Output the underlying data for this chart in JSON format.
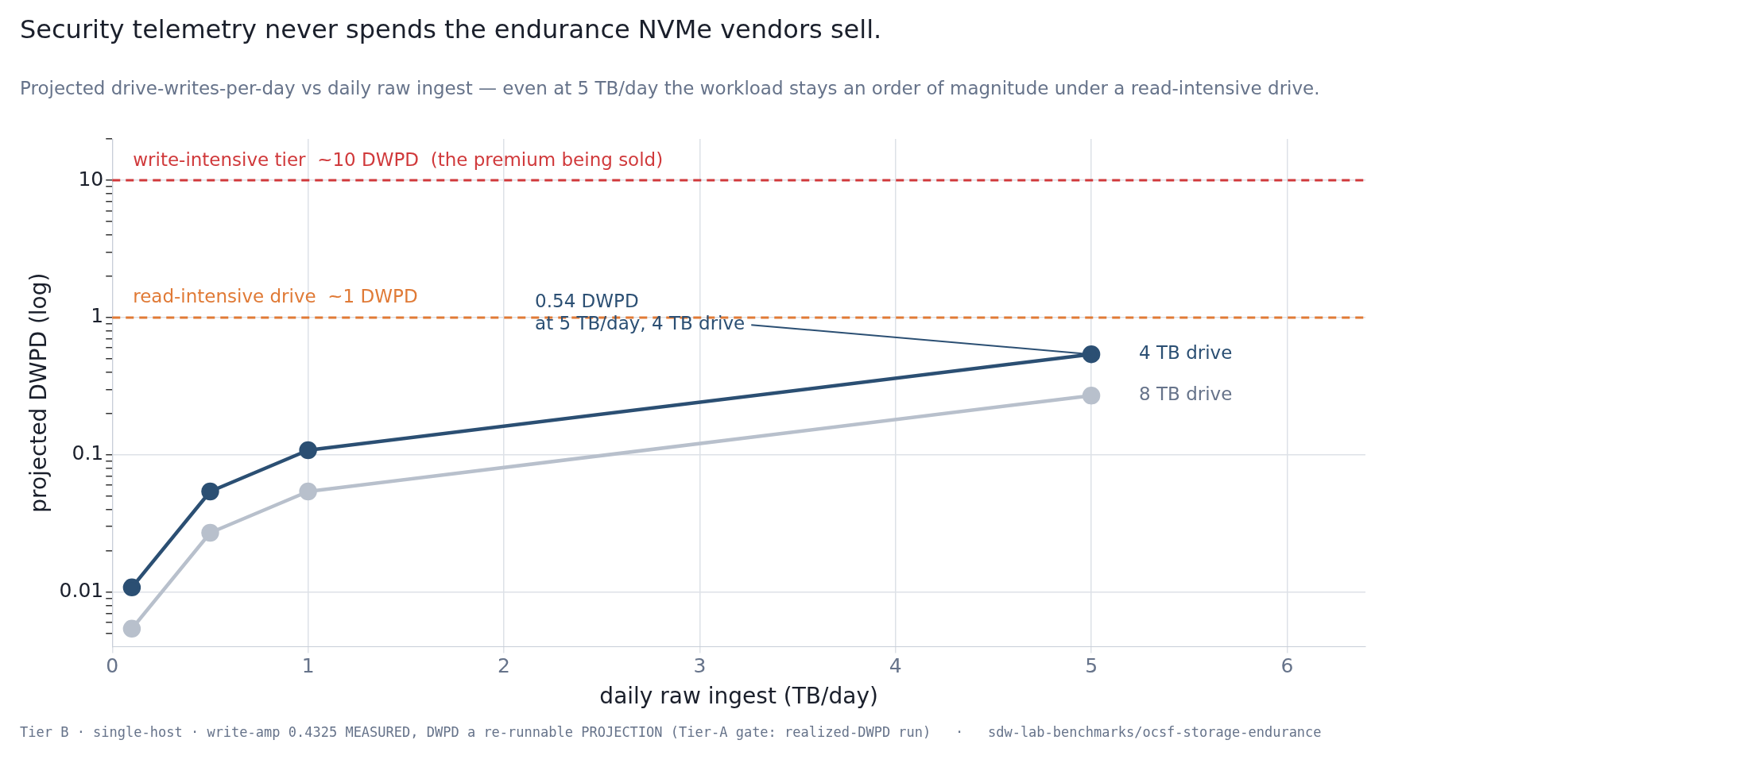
{
  "chart_data": {
    "type": "line",
    "title": "Security telemetry never spends the endurance NVMe vendors sell.",
    "subtitle": "Projected drive-writes-per-day vs daily raw ingest — even at 5 TB/day the workload stays an order of magnitude under a read-intensive drive.",
    "xlabel": "daily raw ingest (TB/day)",
    "ylabel": "projected DWPD (log)",
    "x": [
      0.1,
      0.5,
      1,
      5
    ],
    "series": [
      {
        "name": "4 TB drive",
        "color": "#2b4f73",
        "values": [
          0.0108,
          0.054,
          0.108,
          0.54
        ]
      },
      {
        "name": "8 TB drive",
        "color": "#b8c0cc",
        "values": [
          0.0054,
          0.027,
          0.054,
          0.27
        ]
      }
    ],
    "log": "y",
    "xlim": [
      0,
      6.4
    ],
    "ylim": [
      0.004,
      20
    ],
    "xticks": [
      0,
      1,
      2,
      3,
      4,
      5,
      6
    ],
    "yticks": [
      {
        "value": 0.005,
        "label": null
      },
      {
        "value": 0.006,
        "label": null
      },
      {
        "value": 0.007,
        "label": null
      },
      {
        "value": 0.008,
        "label": null
      },
      {
        "value": 0.009,
        "label": null
      },
      {
        "value": 0.01,
        "label": "0.01"
      },
      {
        "value": 0.02,
        "label": null
      },
      {
        "value": 0.03,
        "label": null
      },
      {
        "value": 0.04,
        "label": null
      },
      {
        "value": 0.05,
        "label": null
      },
      {
        "value": 0.06,
        "label": null
      },
      {
        "value": 0.07,
        "label": null
      },
      {
        "value": 0.08,
        "label": null
      },
      {
        "value": 0.09,
        "label": null
      },
      {
        "value": 0.1,
        "label": "0.1"
      },
      {
        "value": 0.2,
        "label": null
      },
      {
        "value": 0.3,
        "label": null
      },
      {
        "value": 0.4,
        "label": null
      },
      {
        "value": 0.5,
        "label": null
      },
      {
        "value": 0.6,
        "label": null
      },
      {
        "value": 0.7,
        "label": null
      },
      {
        "value": 0.8,
        "label": null
      },
      {
        "value": 0.9,
        "label": null
      },
      {
        "value": 1,
        "label": "1"
      },
      {
        "value": 2,
        "label": null
      },
      {
        "value": 3,
        "label": null
      },
      {
        "value": 4,
        "label": null
      },
      {
        "value": 5,
        "label": null
      },
      {
        "value": 6,
        "label": null
      },
      {
        "value": 7,
        "label": null
      },
      {
        "value": 8,
        "label": null
      },
      {
        "value": 9,
        "label": null
      },
      {
        "value": 10,
        "label": "10"
      },
      {
        "value": 20,
        "label": null
      }
    ],
    "grid": true,
    "legend": false,
    "marker": "circle",
    "line_style": "solid",
    "ref_lines": [
      {
        "axis": "y",
        "value": 10,
        "label": "write-intensive tier  ~10 DWPD  (the premium being sold)",
        "color": "#d0393b",
        "line_style": "dashed"
      },
      {
        "axis": "y",
        "value": 1,
        "label": "read-intensive drive  ~1 DWPD",
        "color": "#e07a36",
        "line_style": "dashed"
      }
    ],
    "annotations": [
      {
        "text": "0.54 DWPD\nat 5 TB/day, 4 TB drive",
        "x": 5,
        "y": 0.54
      },
      "Tier B · single-host · write-amp 0.4325 MEASURED, DWPD a re-runnable PROJECTION (Tier-A gate: realized-DWPD run)   ·   sdw-lab-benchmarks/ocsf-storage-endurance"
    ]
  }
}
